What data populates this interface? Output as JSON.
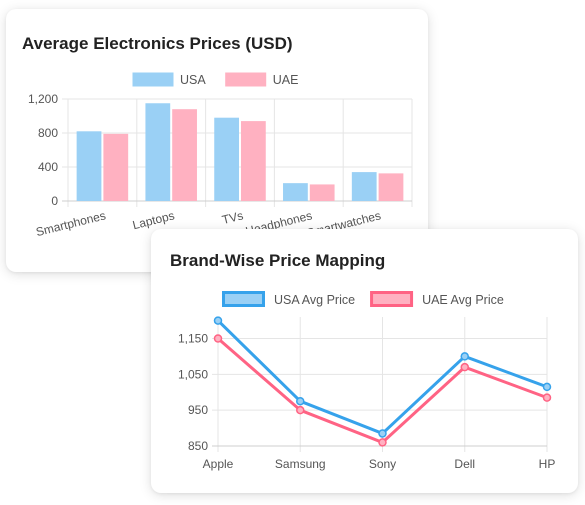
{
  "chart_data": [
    {
      "type": "bar",
      "title": "Average Electronics Prices (USD)",
      "categories": [
        "Smartphones",
        "Laptops",
        "TVs",
        "Headphones",
        "Smartwatches"
      ],
      "series": [
        {
          "name": "USA",
          "values": [
            820,
            1150,
            980,
            210,
            340
          ],
          "color": "#9ad0f5",
          "border": "#9ad0f5"
        },
        {
          "name": "UAE",
          "values": [
            790,
            1080,
            940,
            195,
            325
          ],
          "color": "#ffb1c1",
          "border": "#ffb1c1"
        }
      ],
      "yticks": [
        0,
        400,
        800,
        1200
      ],
      "yticklabels": [
        "0",
        "400",
        "800",
        "1,200"
      ],
      "ylim": [
        0,
        1200
      ],
      "legend": "top",
      "grid": true
    },
    {
      "type": "line",
      "title": "Brand-Wise Price Mapping",
      "categories": [
        "Apple",
        "Samsung",
        "Sony",
        "Dell",
        "HP"
      ],
      "series": [
        {
          "name": "USA Avg Price",
          "values": [
            1200,
            975,
            885,
            1100,
            1015
          ],
          "color": "#36a2eb",
          "fill": "#9ad0f5"
        },
        {
          "name": "UAE Avg Price",
          "values": [
            1150,
            950,
            860,
            1070,
            985
          ],
          "color": "#ff6384",
          "fill": "#ffb1c1"
        }
      ],
      "yticks": [
        850,
        950,
        1050,
        1150
      ],
      "yticklabels": [
        "850",
        "950",
        "1,050",
        "1,150"
      ],
      "ylim": [
        850,
        1210
      ],
      "legend": "top",
      "grid": true
    }
  ]
}
